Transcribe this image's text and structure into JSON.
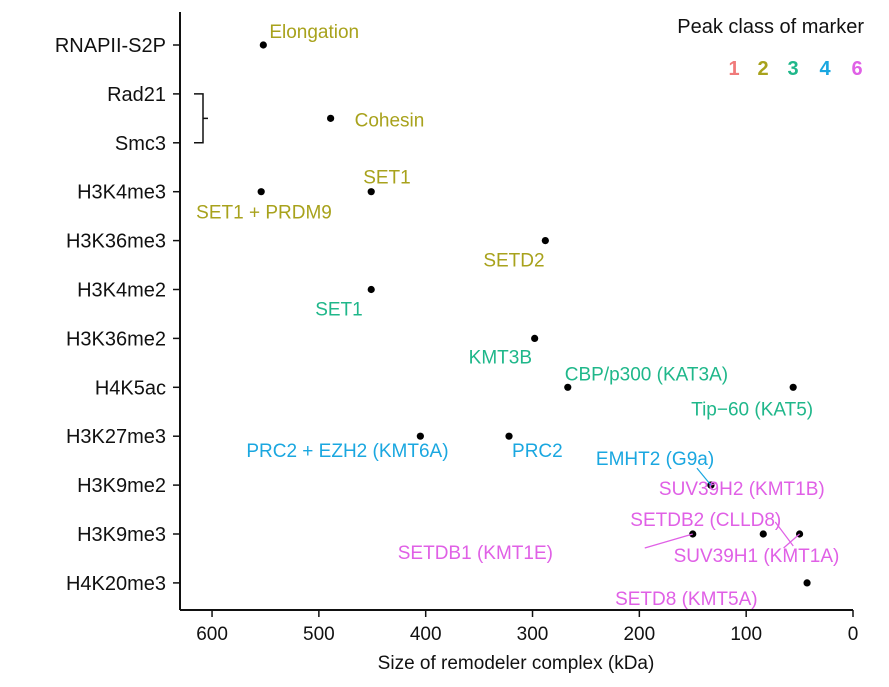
{
  "chart_data": {
    "type": "scatter",
    "xlabel": "Size of remodeler complex (kDa)",
    "xlim": [
      630,
      0
    ],
    "x_ticks": [
      "600",
      "500",
      "400",
      "300",
      "200",
      "100",
      "0"
    ],
    "y_categories": [
      "RNAPII-S2P",
      "Rad21",
      "Smc3",
      "H3K4me3",
      "H3K36me3",
      "H3K4me2",
      "H3K36me2",
      "H4K5ac",
      "H3K27me3",
      "H3K9me2",
      "H3K9me3",
      "H4K20me3"
    ],
    "legend": {
      "title": "Peak class of marker",
      "position": "top-right",
      "entries": [
        {
          "label": "1",
          "color": "#f07a7a"
        },
        {
          "label": "2",
          "color": "#a8a21c"
        },
        {
          "label": "3",
          "color": "#1fb78a"
        },
        {
          "label": "4",
          "color": "#1aa7e0"
        },
        {
          "label": "6",
          "color": "#e060e6"
        }
      ]
    },
    "points": [
      {
        "x": 552,
        "y": "RNAPII-S2P",
        "label": "Elongation",
        "class": "2"
      },
      {
        "x": 489,
        "y": "Rad21/Smc3",
        "label": "Cohesin",
        "class": "2"
      },
      {
        "x": 554,
        "y": "H3K4me3",
        "label": "SET1 + PRDM9",
        "class": "2"
      },
      {
        "x": 451,
        "y": "H3K4me3",
        "label": "SET1",
        "class": "2"
      },
      {
        "x": 288,
        "y": "H3K36me3",
        "label": "SETD2",
        "class": "2"
      },
      {
        "x": 451,
        "y": "H3K4me2",
        "label": "SET1",
        "class": "3"
      },
      {
        "x": 298,
        "y": "H3K36me2",
        "label": "KMT3B",
        "class": "3"
      },
      {
        "x": 267,
        "y": "H4K5ac",
        "label": "CBP/p300 (KAT3A)",
        "class": "3"
      },
      {
        "x": 56,
        "y": "H4K5ac",
        "label": "Tip−60 (KAT5)",
        "class": "3"
      },
      {
        "x": 405,
        "y": "H3K27me3",
        "label": "PRC2 + EZH2 (KMT6A)",
        "class": "4"
      },
      {
        "x": 322,
        "y": "H3K27me3",
        "label": "PRC2",
        "class": "4"
      },
      {
        "x": 133,
        "y": "H3K9me2",
        "label": "EMHT2 (G9a)",
        "class": "4"
      },
      {
        "x": 133,
        "y": "H3K9me2",
        "label": "SUV39H2 (KMT1B)",
        "class": "6"
      },
      {
        "x": 84,
        "y": "H3K9me3",
        "label": "SETDB2 (CLLD8)",
        "class": "6"
      },
      {
        "x": 150,
        "y": "H3K9me3",
        "label": "SETDB1 (KMT1E)",
        "class": "6"
      },
      {
        "x": 50,
        "y": "H3K9me3",
        "label": "SUV39H1 (KMT1A)",
        "class": "6"
      },
      {
        "x": 43,
        "y": "H4K20me3",
        "label": "SETD8 (KMT5A)",
        "class": "6"
      }
    ]
  }
}
